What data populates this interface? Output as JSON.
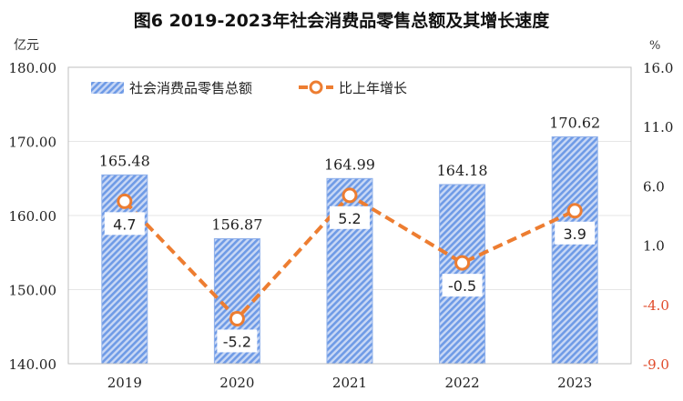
{
  "chart_data": {
    "type": "bar+line",
    "title": "图6 2019-2023年社会消费品零售总额及其增长速度",
    "categories": [
      "2019",
      "2020",
      "2021",
      "2022",
      "2023"
    ],
    "y_left": {
      "unit_label": "亿元",
      "range": [
        140,
        180
      ],
      "ticks": [
        "140.00",
        "150.00",
        "160.00",
        "170.00",
        "180.00"
      ]
    },
    "y_right": {
      "unit_label": "%",
      "range": [
        -9,
        16
      ],
      "ticks": [
        "-9.0",
        "-4.0",
        "1.0",
        "6.0",
        "11.0",
        "16.0"
      ]
    },
    "series": [
      {
        "name": "社会消费品零售总额",
        "type": "bar",
        "axis": "left",
        "values": [
          165.48,
          156.87,
          164.99,
          164.18,
          170.62
        ],
        "labels": [
          "165.48",
          "156.87",
          "164.99",
          "164.18",
          "170.62"
        ],
        "color": "#6f9be6"
      },
      {
        "name": "比上年增长",
        "type": "line",
        "axis": "right",
        "values": [
          4.7,
          -5.2,
          5.2,
          -0.5,
          3.9
        ],
        "labels": [
          "4.7",
          "-5.2",
          "5.2",
          "-0.5",
          "3.9"
        ],
        "color": "#ed7d31"
      }
    ],
    "legend_position": "top-left",
    "grid": true,
    "negative_tick_color": "#e04a2a"
  }
}
